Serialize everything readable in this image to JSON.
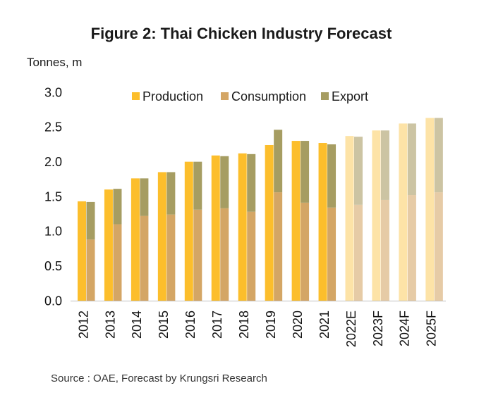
{
  "chart_data": {
    "type": "bar",
    "stacked": true,
    "title": "Figure 2: Thai Chicken Industry Forecast",
    "ylabel": "Tonnes, m",
    "ylim": [
      0,
      3.0
    ],
    "yticks": [
      "0.0",
      "0.5",
      "1.0",
      "1.5",
      "2.0",
      "2.5",
      "3.0"
    ],
    "grid": false,
    "legend_position": "top",
    "categories": [
      "2012",
      "2013",
      "2014",
      "2015",
      "2016",
      "2017",
      "2018",
      "2019",
      "2020",
      "2021",
      "2022E",
      "2023F",
      "2024F",
      "2025F"
    ],
    "faded": [
      false,
      false,
      false,
      false,
      false,
      false,
      false,
      false,
      false,
      false,
      true,
      true,
      true,
      true
    ],
    "series": [
      {
        "name": "Production",
        "stack": 0,
        "color": "#FCBE2C",
        "faded_color": "#FDE3A7",
        "values": [
          1.43,
          1.6,
          1.76,
          1.85,
          2.0,
          2.09,
          2.12,
          2.24,
          2.3,
          2.27,
          2.37,
          2.45,
          2.55,
          2.63
        ]
      },
      {
        "name": "Consumption",
        "stack": 1,
        "color": "#D4A665",
        "faded_color": "#E6CBA6",
        "values": [
          0.88,
          1.1,
          1.22,
          1.24,
          1.31,
          1.33,
          1.28,
          1.56,
          1.41,
          1.34,
          1.38,
          1.45,
          1.52,
          1.56
        ]
      },
      {
        "name": "Export",
        "stack": 1,
        "color": "#A69D62",
        "faded_color": "#CCC4A3",
        "values": [
          0.54,
          0.51,
          0.54,
          0.61,
          0.69,
          0.75,
          0.83,
          0.9,
          0.89,
          0.91,
          0.98,
          1.0,
          1.03,
          1.07
        ]
      }
    ],
    "source": "Source : OAE, Forecast by Krungsri Research"
  }
}
